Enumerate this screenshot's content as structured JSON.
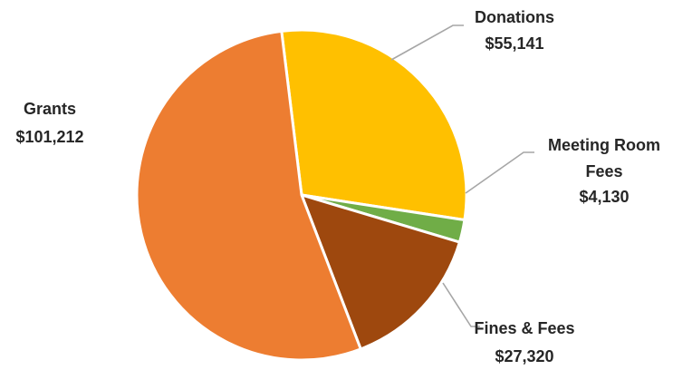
{
  "chart_data": {
    "type": "pie",
    "slices": [
      {
        "name": "Donations",
        "value": 55141,
        "value_label": "$55,141",
        "color": "#FFC000"
      },
      {
        "name": "Meeting Room Fees",
        "value": 4130,
        "value_label": "$4,130",
        "color": "#70AD47"
      },
      {
        "name": "Fines & Fees",
        "value": 27320,
        "value_label": "$27,320",
        "color": "#9E480E"
      },
      {
        "name": "Grants",
        "value": 101212,
        "value_label": "$101,212",
        "color": "#ED7D31"
      }
    ],
    "start_angle_deg": -7,
    "direction": "clockwise",
    "legend": "none",
    "labels": "outside with leader lines"
  }
}
